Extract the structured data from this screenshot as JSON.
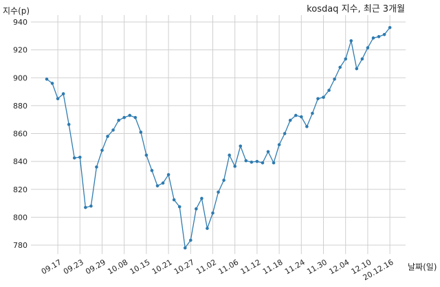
{
  "chart_data": {
    "type": "line",
    "title": "kosdaq 지수, 최근 3개월",
    "ylabel": "지수(p)",
    "xlabel": "날짜(일)",
    "ylim": [
      770,
      945
    ],
    "yticks": [
      780,
      800,
      820,
      840,
      860,
      880,
      900,
      920,
      940
    ],
    "xtick_labels": [
      "09.17",
      "09.23",
      "09.29",
      "10.08",
      "10.15",
      "10.21",
      "10.27",
      "11.02",
      "11.06",
      "11.12",
      "11.18",
      "11.24",
      "11.30",
      "12.04",
      "12.10",
      "20.12.16"
    ],
    "xtick_positions": [
      2,
      6,
      10,
      14,
      18,
      22,
      26,
      30,
      34,
      38,
      42,
      46,
      50,
      54,
      58,
      62
    ],
    "grid": true,
    "colors": {
      "line": "#2e7bb0",
      "marker": "#2e7bb0"
    },
    "series": [
      {
        "values": [
          899,
          896,
          885,
          888.5,
          866.5,
          842.5,
          843,
          807,
          808,
          836,
          848,
          858,
          862.5,
          869.5,
          871.5,
          873,
          871.5,
          861,
          844.5,
          833.5,
          822.5,
          824.5,
          830.5,
          812.5,
          807.5,
          778,
          783.5,
          806,
          813.5,
          792,
          803,
          818,
          826.5,
          844.5,
          836.5,
          851,
          840.5,
          839.5,
          840,
          839,
          847,
          839,
          852,
          860,
          869.5,
          873,
          872,
          865,
          874.5,
          885,
          886,
          891,
          899,
          907.5,
          913.5,
          926.5,
          906.5,
          913.5,
          921.5,
          928.5,
          929.5,
          931,
          936
        ]
      }
    ]
  }
}
